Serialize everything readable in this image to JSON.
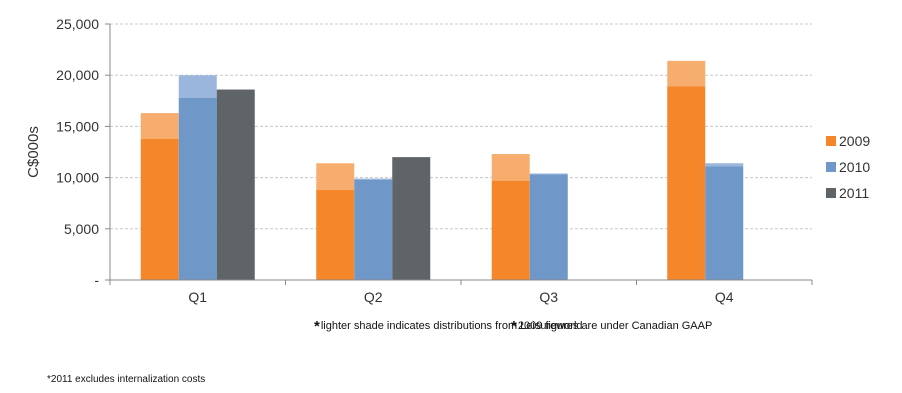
{
  "chart_data": {
    "type": "bar",
    "ylabel": "C$000s",
    "ylim": [
      0,
      25000
    ],
    "yticks": [
      0,
      5000,
      10000,
      15000,
      20000,
      25000
    ],
    "ytick_labels": [
      "-",
      "5,000",
      "10,000",
      "15,000",
      "20,000",
      "25,000"
    ],
    "categories": [
      "Q1",
      "Q2",
      "Q3",
      "Q4"
    ],
    "grid": "horizontal dashed",
    "legend_position": "right",
    "series": [
      {
        "name": "2009",
        "color": "#f5862a",
        "lighter_color": "#f7ad6e",
        "base": [
          13800,
          8800,
          9700,
          18900
        ],
        "total": [
          16300,
          11400,
          12300,
          21400
        ]
      },
      {
        "name": "2010",
        "color": "#6f97c7",
        "lighter_color": "#9ab6dc",
        "base": [
          17800,
          9800,
          10300,
          11100
        ],
        "total": [
          20000,
          9900,
          10400,
          11400
        ]
      },
      {
        "name": "2011",
        "color": "#5f6469",
        "lighter_color": "#5f6469",
        "base": [
          18600,
          12000,
          null,
          null
        ],
        "total": [
          18600,
          12000,
          null,
          null
        ]
      }
    ]
  },
  "notes": {
    "note1_star": "*",
    "note1": "lighter shade indicates distributions from Leisureworld",
    "note2_star": "*",
    "note2": "2009 figures are under Canadian GAAP",
    "note3": "*2011 excludes internalization costs"
  }
}
